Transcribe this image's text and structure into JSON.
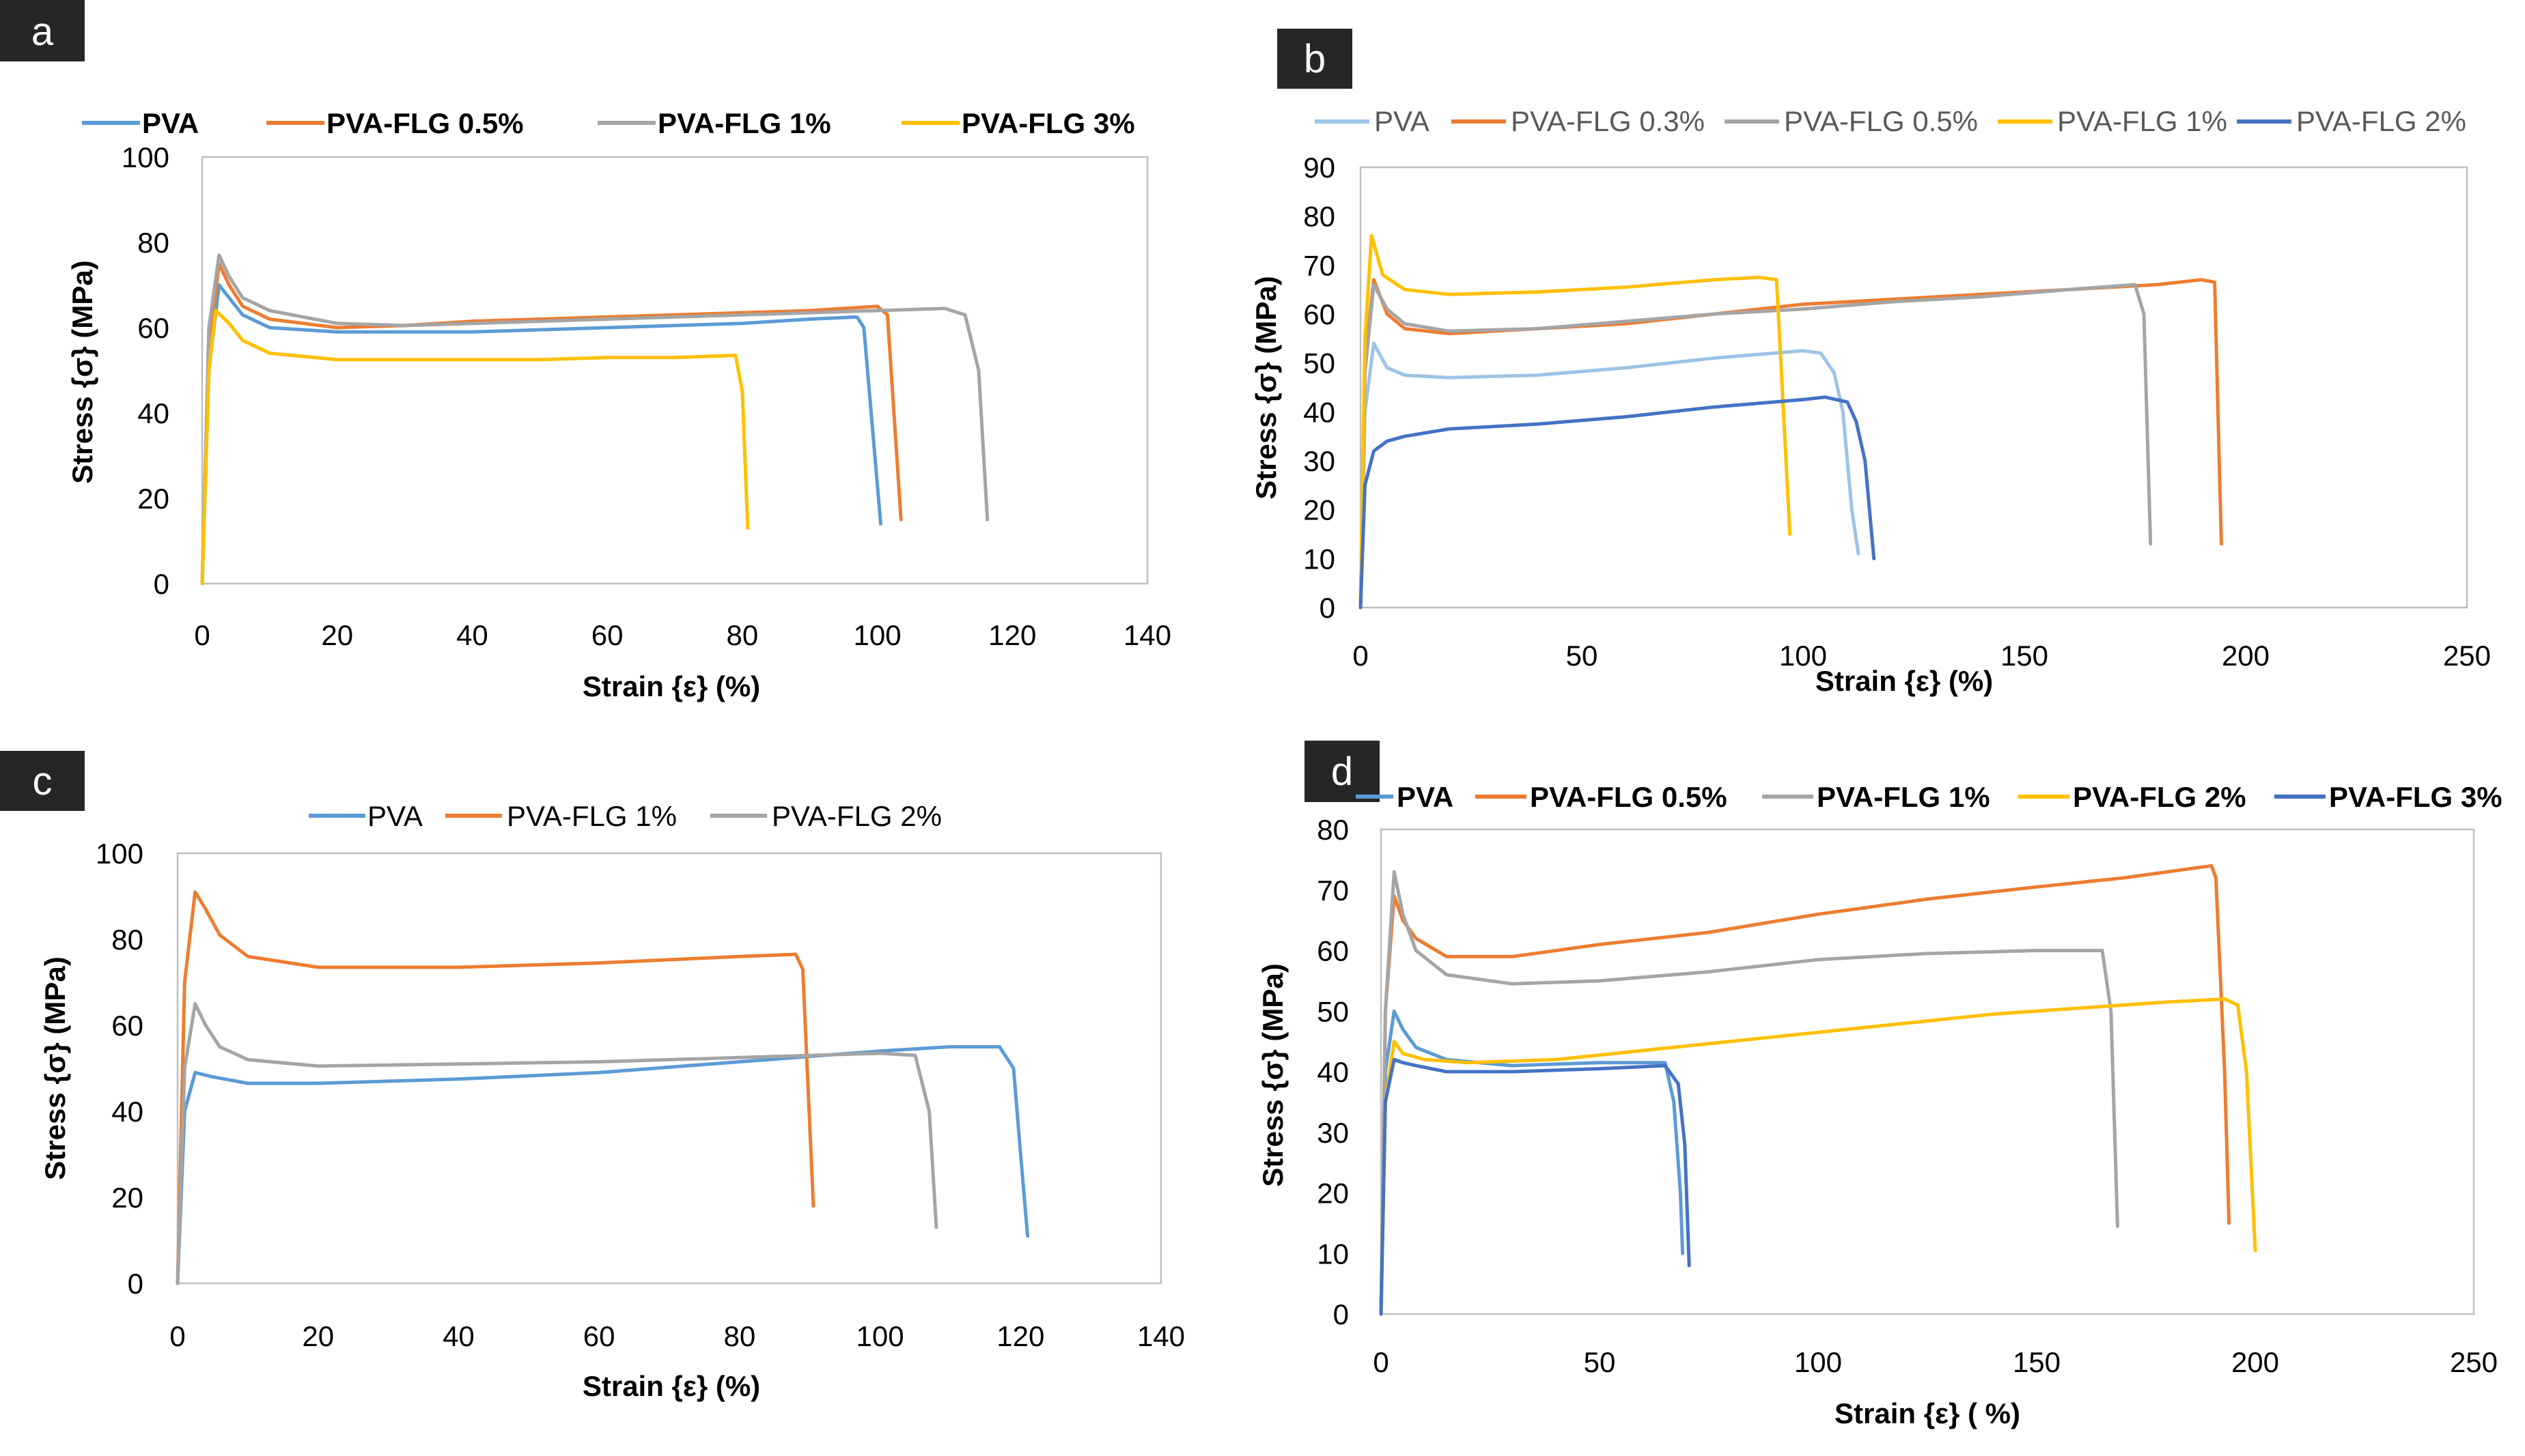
{
  "chart_data": [
    {
      "id": "a",
      "panel_label": "a",
      "type": "line",
      "xlabel": "Strain {ε} (%)",
      "ylabel": "Stress {σ} (MPa)",
      "xlim": [
        0,
        140
      ],
      "ylim": [
        0,
        100
      ],
      "xticks": [
        "0",
        "20",
        "40",
        "60",
        "80",
        "100",
        "120",
        "140"
      ],
      "yticks": [
        "0",
        "20",
        "40",
        "60",
        "80",
        "100"
      ],
      "legend_position": "top",
      "series": [
        {
          "name": "PVA",
          "color": "#5b9bd5",
          "x": [
            0,
            1,
            2.5,
            4,
            6,
            10,
            20,
            30,
            40,
            50,
            60,
            70,
            80,
            90,
            97,
            98,
            100.5
          ],
          "y": [
            0,
            50,
            70,
            67,
            63,
            60,
            59,
            59,
            59,
            59.5,
            60,
            60.5,
            61,
            62,
            62.5,
            60,
            14
          ]
        },
        {
          "name": "PVA-FLG 0.5%",
          "color": "#ed7d31",
          "x": [
            0,
            1,
            2.5,
            4,
            6,
            10,
            20,
            30,
            40,
            50,
            60,
            70,
            80,
            90,
            100,
            101.5,
            103.5
          ],
          "y": [
            0,
            55,
            75,
            70,
            65,
            62,
            60,
            60.5,
            61.5,
            62,
            62.5,
            63,
            63.5,
            64,
            65,
            63,
            15
          ]
        },
        {
          "name": "PVA-FLG 1%",
          "color": "#a5a5a5",
          "x": [
            0,
            1,
            2.5,
            4,
            6,
            10,
            20,
            30,
            40,
            50,
            60,
            70,
            80,
            90,
            100,
            110,
            113,
            115,
            116.3
          ],
          "y": [
            0,
            60,
            77,
            72,
            67,
            64,
            61,
            60.5,
            61,
            61.5,
            62,
            62.5,
            63,
            63.5,
            64,
            64.5,
            63,
            50,
            15
          ]
        },
        {
          "name": "PVA-FLG 3%",
          "color": "#ffc000",
          "x": [
            0,
            1,
            2,
            4,
            6,
            10,
            20,
            30,
            40,
            50,
            60,
            70,
            79,
            80,
            80.8
          ],
          "y": [
            0,
            50,
            64,
            61,
            57,
            54,
            52.5,
            52.5,
            52.5,
            52.5,
            53,
            53,
            53.5,
            45,
            13
          ]
        }
      ]
    },
    {
      "id": "b",
      "panel_label": "b",
      "type": "line",
      "xlabel": "Strain {ε} (%)",
      "ylabel": "Stress {σ} (MPa)",
      "xlim": [
        0,
        250
      ],
      "ylim": [
        0,
        90
      ],
      "xticks": [
        "0",
        "50",
        "100",
        "150",
        "200",
        "250"
      ],
      "yticks": [
        "0",
        "10",
        "20",
        "30",
        "40",
        "50",
        "60",
        "70",
        "80",
        "90"
      ],
      "legend_position": "top",
      "series": [
        {
          "name": "PVA",
          "color": "#9dc3e6",
          "x": [
            0,
            1,
            3,
            6,
            10,
            20,
            40,
            60,
            80,
            100,
            104,
            107,
            109,
            110,
            111,
            112.5
          ],
          "y": [
            0,
            40,
            54,
            49,
            47.5,
            47,
            47.5,
            49,
            51,
            52.5,
            52,
            48,
            40,
            30,
            20,
            11
          ]
        },
        {
          "name": "PVA-FLG 0.3%",
          "color": "#ed7d31",
          "x": [
            0,
            1,
            3,
            6,
            10,
            20,
            40,
            60,
            80,
            100,
            120,
            140,
            160,
            180,
            190,
            193,
            194.5
          ],
          "y": [
            0,
            50,
            67,
            60,
            57,
            56,
            57,
            58,
            60,
            62,
            63,
            64,
            65,
            66,
            67,
            66.5,
            13
          ]
        },
        {
          "name": "PVA-FLG 0.5%",
          "color": "#a5a5a5",
          "x": [
            0,
            1,
            3,
            6,
            10,
            20,
            40,
            60,
            80,
            100,
            120,
            140,
            160,
            175,
            177,
            178.5
          ],
          "y": [
            0,
            48,
            66,
            61,
            58,
            56.5,
            57,
            58.5,
            60,
            61,
            62.5,
            63.5,
            65,
            66,
            60,
            13
          ]
        },
        {
          "name": "PVA-FLG 1%",
          "color": "#ffc000",
          "x": [
            0,
            1,
            2.5,
            5,
            10,
            20,
            40,
            60,
            80,
            90,
            94,
            95,
            97
          ],
          "y": [
            0,
            55,
            76,
            68,
            65,
            64,
            64.5,
            65.5,
            67,
            67.5,
            67,
            50,
            15
          ]
        },
        {
          "name": "PVA-FLG 2%",
          "color": "#4472c4",
          "x": [
            0,
            1,
            3,
            6,
            10,
            20,
            40,
            60,
            80,
            100,
            105,
            110,
            112,
            114,
            115,
            116
          ],
          "y": [
            0,
            25,
            32,
            34,
            35,
            36.5,
            37.5,
            39,
            41,
            42.5,
            43,
            42,
            38,
            30,
            20,
            10
          ]
        }
      ]
    },
    {
      "id": "c",
      "panel_label": "c",
      "type": "line",
      "xlabel": "Strain {ε} (%)",
      "ylabel": "Stress {σ} (MPa)",
      "xlim": [
        0,
        140
      ],
      "ylim": [
        0,
        100
      ],
      "xticks": [
        "0",
        "20",
        "40",
        "60",
        "80",
        "100",
        "120",
        "140"
      ],
      "yticks": [
        "0",
        "20",
        "40",
        "60",
        "80",
        "100"
      ],
      "legend_position": "top",
      "series": [
        {
          "name": "PVA",
          "color": "#5b9bd5",
          "x": [
            0,
            1,
            2.5,
            5,
            10,
            20,
            40,
            60,
            80,
            100,
            110,
            117,
            119,
            120,
            121
          ],
          "y": [
            0,
            40,
            49,
            48,
            46.5,
            46.5,
            47.5,
            49,
            51.5,
            54,
            55,
            55,
            50,
            30,
            11
          ]
        },
        {
          "name": "PVA-FLG 1%",
          "color": "#ed7d31",
          "x": [
            0,
            1,
            2.5,
            4,
            6,
            10,
            20,
            40,
            60,
            80,
            88,
            89,
            90.5
          ],
          "y": [
            0,
            70,
            91,
            87,
            81,
            76,
            73.5,
            73.5,
            74.5,
            76,
            76.5,
            73,
            18
          ]
        },
        {
          "name": "PVA-FLG 2%",
          "color": "#a5a5a5",
          "x": [
            0,
            1,
            2.5,
            4,
            6,
            10,
            20,
            40,
            60,
            80,
            100,
            105,
            107,
            108
          ],
          "y": [
            0,
            50,
            65,
            60,
            55,
            52,
            50.5,
            51,
            51.5,
            52.5,
            53.5,
            53,
            40,
            13
          ]
        }
      ]
    },
    {
      "id": "d",
      "panel_label": "d",
      "type": "line",
      "xlabel": "Strain {ε} ( %)",
      "ylabel": "Stress  {σ} (MPa)",
      "xlim": [
        0,
        250
      ],
      "ylim": [
        0,
        80
      ],
      "xticks": [
        "0",
        "50",
        "100",
        "150",
        "200",
        "250"
      ],
      "yticks": [
        "0",
        "10",
        "20",
        "30",
        "40",
        "50",
        "60",
        "70",
        "80"
      ],
      "legend_position": "top",
      "series": [
        {
          "name": "PVA",
          "color": "#5b9bd5",
          "x": [
            0,
            1,
            3,
            5,
            8,
            15,
            30,
            50,
            65,
            67,
            68.5,
            69
          ],
          "y": [
            0,
            40,
            50,
            47,
            44,
            42,
            41,
            41.5,
            41.5,
            35,
            20,
            10
          ]
        },
        {
          "name": "PVA-FLG 0.5%",
          "color": "#ed7d31",
          "x": [
            0,
            1,
            3,
            5,
            8,
            15,
            30,
            50,
            75,
            100,
            125,
            150,
            170,
            185,
            190,
            191,
            193,
            194
          ],
          "y": [
            0,
            50,
            69,
            65,
            62,
            59,
            59,
            61,
            63,
            66,
            68.5,
            70.5,
            72,
            73.5,
            74,
            72,
            40,
            15
          ]
        },
        {
          "name": "PVA-FLG 1%",
          "color": "#a5a5a5",
          "x": [
            0,
            1,
            3,
            5,
            8,
            15,
            30,
            50,
            75,
            100,
            125,
            150,
            165,
            167,
            168.5
          ],
          "y": [
            0,
            50,
            73,
            66,
            60,
            56,
            54.5,
            55,
            56.5,
            58.5,
            59.5,
            60,
            60,
            50,
            14.5
          ]
        },
        {
          "name": "PVA-FLG 2%",
          "color": "#ffc000",
          "x": [
            0,
            1,
            3,
            5,
            10,
            20,
            40,
            60,
            80,
            100,
            120,
            140,
            160,
            180,
            193,
            196,
            198,
            200
          ],
          "y": [
            0,
            35,
            45,
            43,
            42,
            41.5,
            42,
            43.5,
            45,
            46.5,
            48,
            49.5,
            50.5,
            51.5,
            52,
            51,
            40,
            10.5
          ]
        },
        {
          "name": "PVA-FLG 3%",
          "color": "#4472c4",
          "x": [
            0,
            1,
            3,
            5,
            8,
            15,
            30,
            50,
            65,
            68,
            69.5,
            70.5
          ],
          "y": [
            0,
            35,
            42,
            41.5,
            41,
            40,
            40,
            40.5,
            41,
            38,
            28,
            8
          ]
        }
      ]
    }
  ]
}
